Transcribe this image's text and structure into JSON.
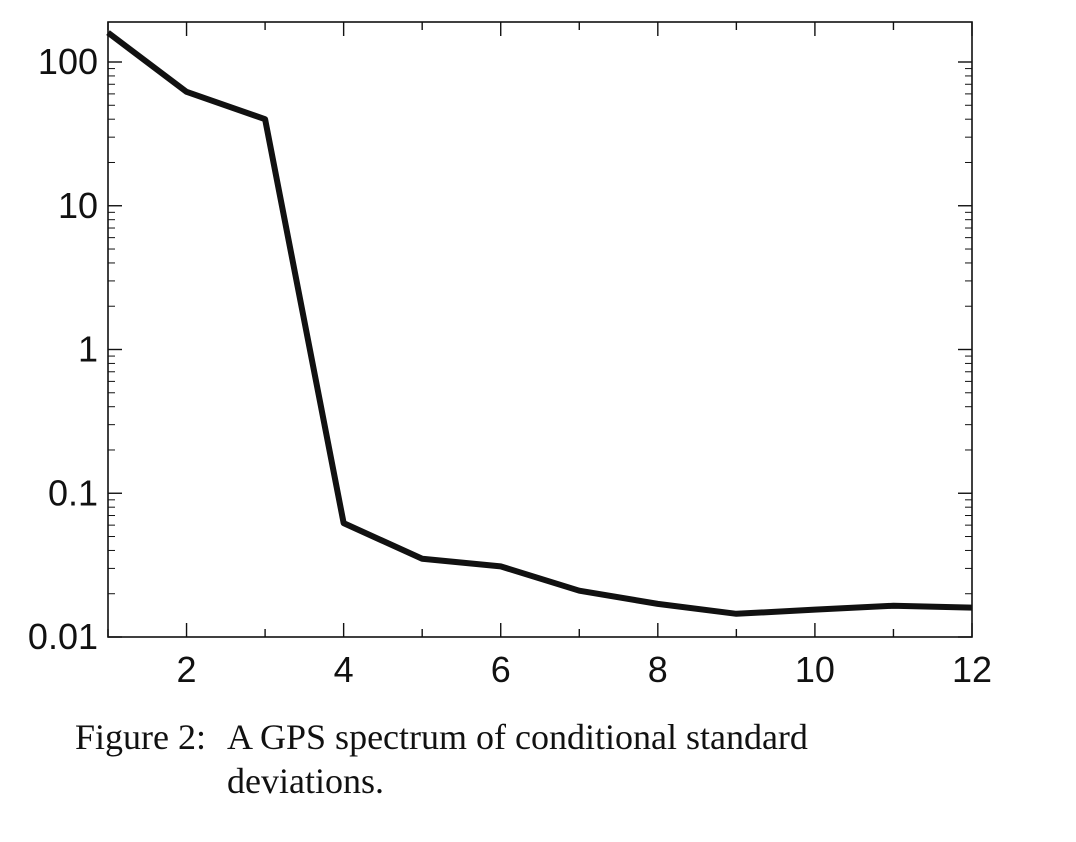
{
  "chart_data": {
    "type": "line",
    "x": [
      1,
      2,
      3,
      4,
      5,
      6,
      7,
      8,
      9,
      10,
      11,
      12
    ],
    "series": [
      {
        "values": [
          160,
          62,
          40,
          0.062,
          0.035,
          0.031,
          0.021,
          0.017,
          0.0145,
          0.0155,
          0.0165,
          0.016
        ]
      }
    ],
    "xlim": [
      1,
      12
    ],
    "ylim": [
      0.01,
      200
    ],
    "yscale": "log",
    "xticks": [
      2,
      4,
      6,
      8,
      10,
      12
    ],
    "xtick_labels": [
      "2",
      "4",
      "6",
      "8",
      "10",
      "12"
    ],
    "yticks": [
      0.01,
      0.1,
      1,
      10,
      100
    ],
    "ytick_labels": [
      "0.01",
      "0.1",
      "1",
      "10",
      "100"
    ],
    "title": "",
    "xlabel": "",
    "ylabel": "",
    "grid": false,
    "line_color": "#111111"
  },
  "caption": {
    "label": "Figure 2:",
    "text": "A GPS spectrum of conditional standard deviations."
  }
}
